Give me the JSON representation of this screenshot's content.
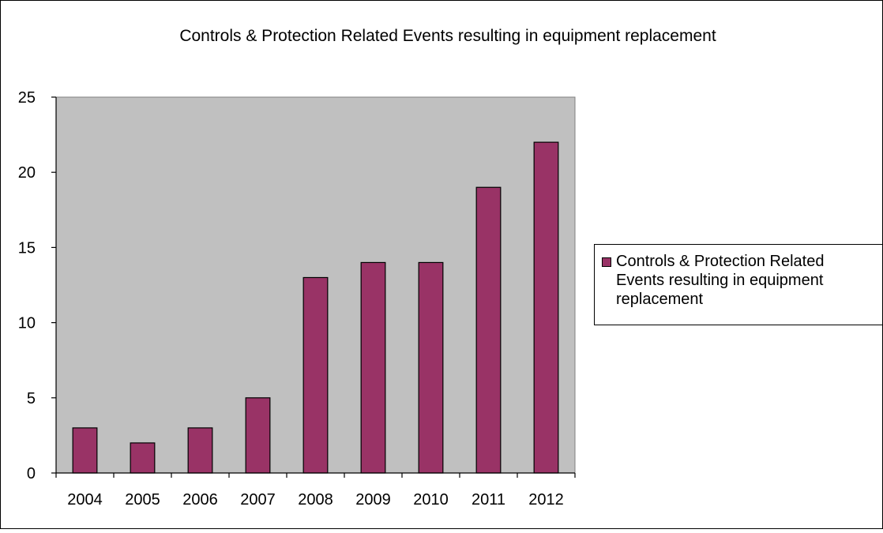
{
  "colors": {
    "bar": "#993366",
    "plot_background": "#c0c0c0",
    "outline": "#000000"
  },
  "chart_data": {
    "type": "bar",
    "title": "Controls & Protection Related Events resulting in equipment  replacement",
    "xlabel": "",
    "ylabel": "",
    "categories": [
      "2004",
      "2005",
      "2006",
      "2007",
      "2008",
      "2009",
      "2010",
      "2011",
      "2012"
    ],
    "series": [
      {
        "name": "Controls & Protection Related Events resulting in equipment replacement",
        "values": [
          3,
          2,
          3,
          5,
          13,
          14,
          14,
          19,
          22
        ]
      }
    ],
    "ylim": [
      0,
      25
    ],
    "yticks": [
      0,
      5,
      10,
      15,
      20,
      25
    ],
    "grid": false,
    "legend": "right"
  }
}
